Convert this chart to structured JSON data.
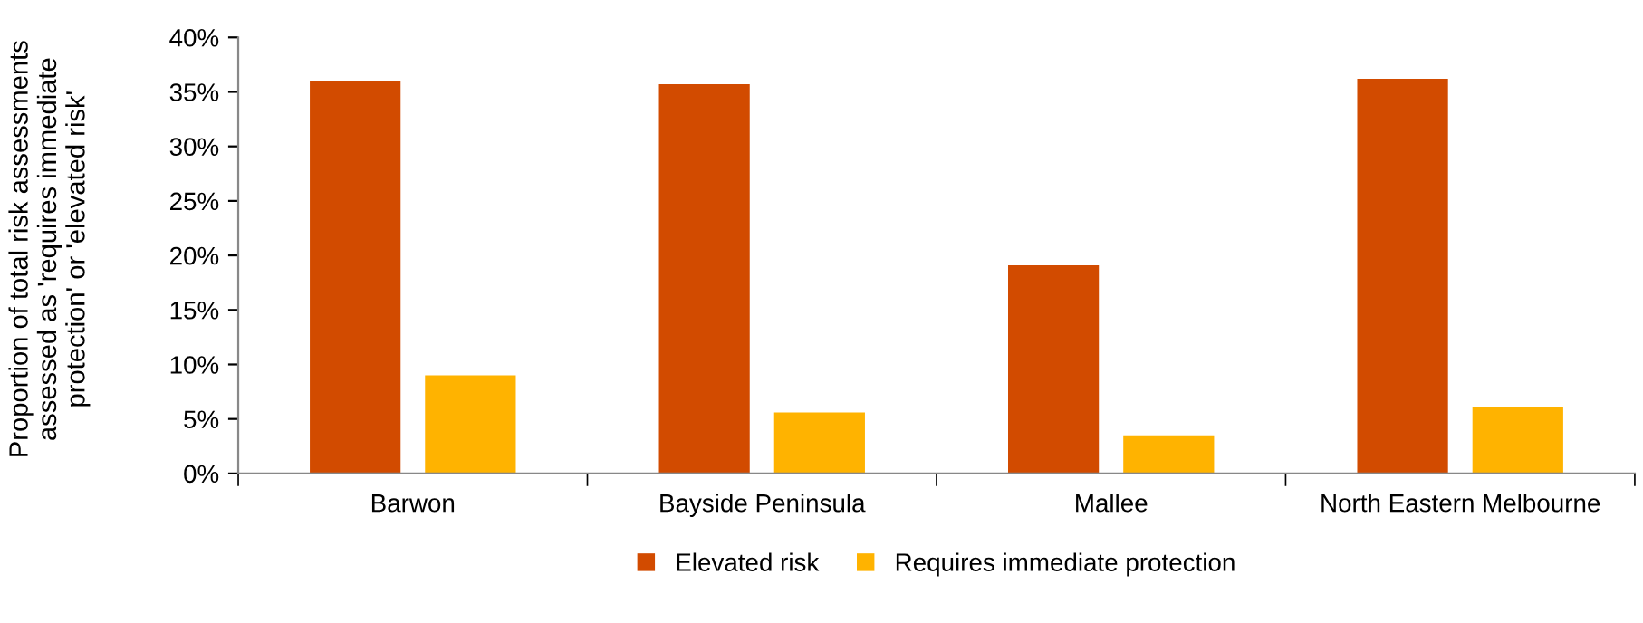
{
  "chart_data": {
    "type": "bar",
    "ylabel": "Proportion of total risk assessments assessed as 'requires immediate protection' or 'elevated risk'",
    "categories": [
      "Barwon",
      "Bayside Peninsula",
      "Mallee",
      "North Eastern Melbourne"
    ],
    "series": [
      {
        "name": "Elevated risk",
        "color": "#d24b00",
        "values": [
          36.0,
          35.7,
          19.1,
          36.2
        ]
      },
      {
        "name": "Requires immediate protection",
        "color": "#ffb300",
        "values": [
          9.0,
          5.6,
          3.5,
          6.1
        ]
      }
    ],
    "ylim": [
      0,
      40
    ],
    "yticks": [
      {
        "value": 0,
        "label": "0%"
      },
      {
        "value": 5,
        "label": "5%"
      },
      {
        "value": 10,
        "label": "10%"
      },
      {
        "value": 15,
        "label": "15%"
      },
      {
        "value": 20,
        "label": "20%"
      },
      {
        "value": 25,
        "label": "25%"
      },
      {
        "value": 30,
        "label": "30%"
      },
      {
        "value": 35,
        "label": "35%"
      },
      {
        "value": 40,
        "label": "40%"
      }
    ],
    "grid": false,
    "legend": "bottom"
  }
}
